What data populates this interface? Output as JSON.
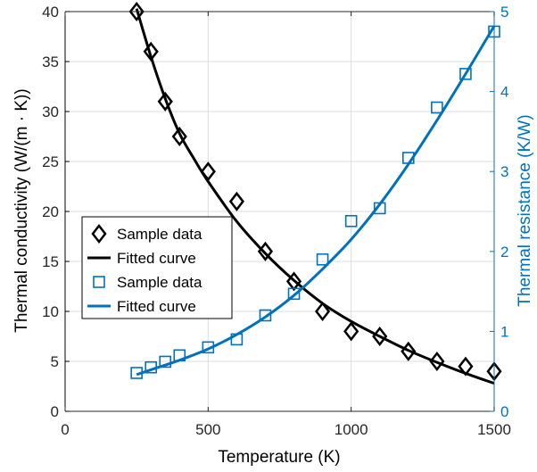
{
  "chart_data": {
    "type": "scatter",
    "xlabel": "Temperature (K)",
    "ylabel_left": "Thermal conductivity (W/(m · K))",
    "ylabel_right": "Thermal resistance (K/W)",
    "xlim": [
      0,
      1500
    ],
    "ylim_left": [
      0,
      40
    ],
    "ylim_right": [
      0,
      5
    ],
    "x_ticks": [
      0,
      500,
      1000,
      1500
    ],
    "y_ticks_left": [
      0,
      5,
      10,
      15,
      20,
      25,
      30,
      35,
      40
    ],
    "y_ticks_right": [
      0,
      1,
      2,
      3,
      4,
      5
    ],
    "grid": true,
    "legend_position": "center-left",
    "colors": {
      "left": "#000000",
      "right": "#0072BD"
    },
    "series": [
      {
        "name": "Sample data",
        "axis": "left",
        "kind": "markers",
        "marker": "diamond",
        "x": [
          250,
          300,
          350,
          400,
          500,
          600,
          700,
          800,
          900,
          1000,
          1100,
          1200,
          1300,
          1400,
          1500
        ],
        "y": [
          40,
          36,
          31,
          27.5,
          24,
          21,
          16,
          13,
          10,
          8,
          7.5,
          6,
          5,
          4.5,
          4
        ]
      },
      {
        "name": "Fitted curve",
        "axis": "left",
        "kind": "line",
        "x": [
          250,
          300,
          350,
          400,
          450,
          500,
          600,
          700,
          800,
          900,
          1000,
          1100,
          1200,
          1300,
          1400,
          1500
        ],
        "y": [
          40.3,
          35.5,
          31.3,
          27.8,
          25.3,
          23.0,
          19.0,
          15.8,
          13.1,
          10.8,
          9.0,
          7.5,
          6.1,
          4.9,
          3.8,
          2.8
        ]
      },
      {
        "name": "Sample data",
        "axis": "right",
        "kind": "markers",
        "marker": "square",
        "x": [
          250,
          300,
          350,
          400,
          500,
          600,
          700,
          800,
          900,
          1000,
          1100,
          1200,
          1300,
          1400,
          1500
        ],
        "y": [
          0.48,
          0.55,
          0.62,
          0.7,
          0.8,
          0.9,
          1.2,
          1.47,
          1.9,
          2.38,
          2.54,
          3.17,
          3.8,
          4.22,
          4.75
        ]
      },
      {
        "name": "Fitted curve",
        "axis": "right",
        "kind": "line",
        "x": [
          250,
          300,
          400,
          500,
          600,
          700,
          800,
          900,
          1000,
          1100,
          1200,
          1300,
          1400,
          1500
        ],
        "y": [
          0.46,
          0.52,
          0.64,
          0.78,
          0.96,
          1.18,
          1.45,
          1.78,
          2.15,
          2.59,
          3.09,
          3.64,
          4.22,
          4.82
        ]
      }
    ]
  }
}
